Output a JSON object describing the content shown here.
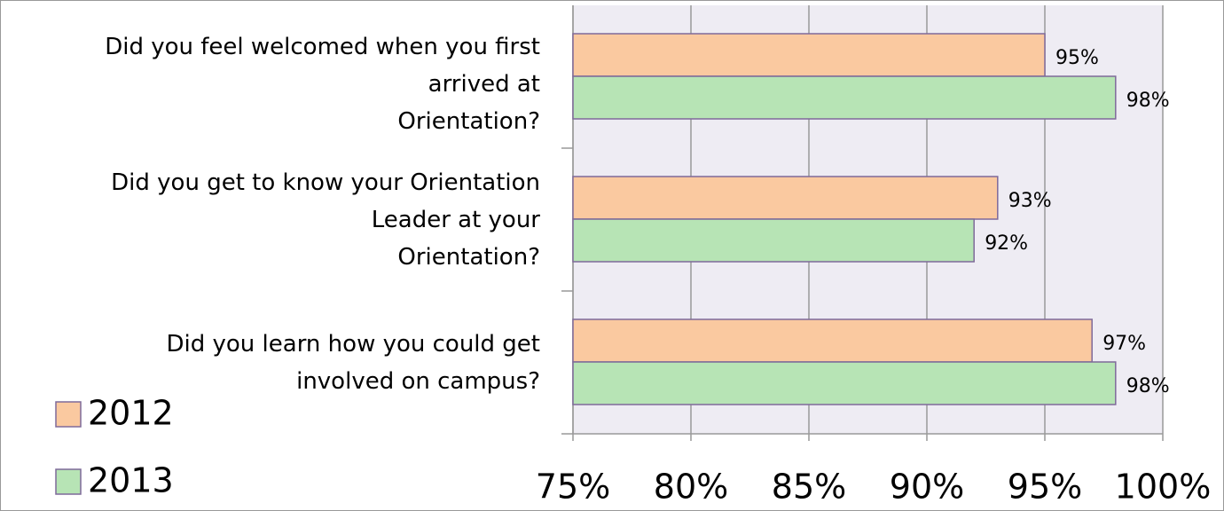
{
  "chart_data": {
    "type": "bar",
    "orientation": "horizontal",
    "categories": [
      "Did you feel welcomed when you first\narrived at\nOrientation?",
      "Did you get to know your Orientation\nLeader at your\nOrientation?",
      "Did you learn how you could get\ninvolved on campus?"
    ],
    "series": [
      {
        "name": "2012",
        "color": "#fac9a0",
        "values": [
          95,
          93,
          97
        ],
        "value_labels": [
          "95%",
          "93%",
          "97%"
        ]
      },
      {
        "name": "2013",
        "color": "#b7e4b5",
        "values": [
          98,
          92,
          98
        ],
        "value_labels": [
          "98%",
          "92%",
          "98%"
        ]
      }
    ],
    "xlim": [
      75,
      100
    ],
    "xticks": [
      {
        "value": 75,
        "label": "75%"
      },
      {
        "value": 80,
        "label": "80%"
      },
      {
        "value": 85,
        "label": "85%"
      },
      {
        "value": 90,
        "label": "90%"
      },
      {
        "value": 95,
        "label": "95%"
      },
      {
        "value": 100,
        "label": "100%"
      }
    ],
    "grid": true,
    "legend": "bottom-left",
    "edge_color": "#7f6a9a"
  }
}
